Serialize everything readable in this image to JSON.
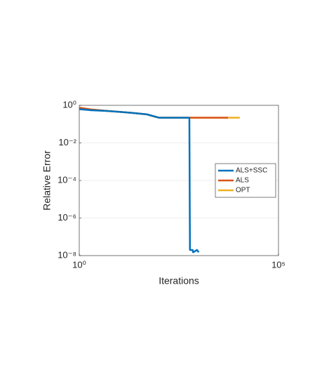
{
  "chart_data": {
    "type": "line",
    "xlabel": "Iterations",
    "ylabel": "Relative Error",
    "xscale": "log",
    "yscale": "log",
    "grid": true,
    "legend": "east",
    "xlim": [
      1,
      100000
    ],
    "ylim": [
      1e-08,
      1
    ],
    "xticks": [
      {
        "value": 1,
        "label": "10⁰"
      },
      {
        "value": 100000,
        "label": "10⁵"
      }
    ],
    "yticks": [
      {
        "value": 1,
        "label": "10⁰"
      },
      {
        "value": 0.01,
        "label": "10⁻²"
      },
      {
        "value": 0.0001,
        "label": "10⁻⁴"
      },
      {
        "value": 1e-06,
        "label": "10⁻⁶"
      },
      {
        "value": 1e-08,
        "label": "10⁻⁸"
      }
    ],
    "series": [
      {
        "name": "ALS+SSC",
        "color": "#0072bd",
        "x": [
          1,
          2,
          5,
          10,
          20,
          50,
          80,
          100,
          580,
          600,
          700,
          720,
          900,
          1000
        ],
        "values": [
          0.62,
          0.55,
          0.5,
          0.45,
          0.4,
          0.33,
          0.25,
          0.22,
          0.22,
          2e-08,
          2e-08,
          1.5e-08,
          2e-08,
          1.5e-08
        ]
      },
      {
        "name": "ALS",
        "color": "#d95319",
        "x": [
          1,
          2,
          5,
          10,
          20,
          50,
          80,
          100,
          1000,
          5400
        ],
        "values": [
          0.75,
          0.6,
          0.5,
          0.45,
          0.4,
          0.33,
          0.25,
          0.22,
          0.22,
          0.22
        ]
      },
      {
        "name": "OPT",
        "color": "#edb120",
        "x": [
          1,
          2,
          5,
          10,
          20,
          50,
          80,
          100,
          1000,
          10700
        ],
        "values": [
          0.75,
          0.6,
          0.5,
          0.45,
          0.4,
          0.33,
          0.25,
          0.22,
          0.22,
          0.22
        ]
      }
    ]
  }
}
